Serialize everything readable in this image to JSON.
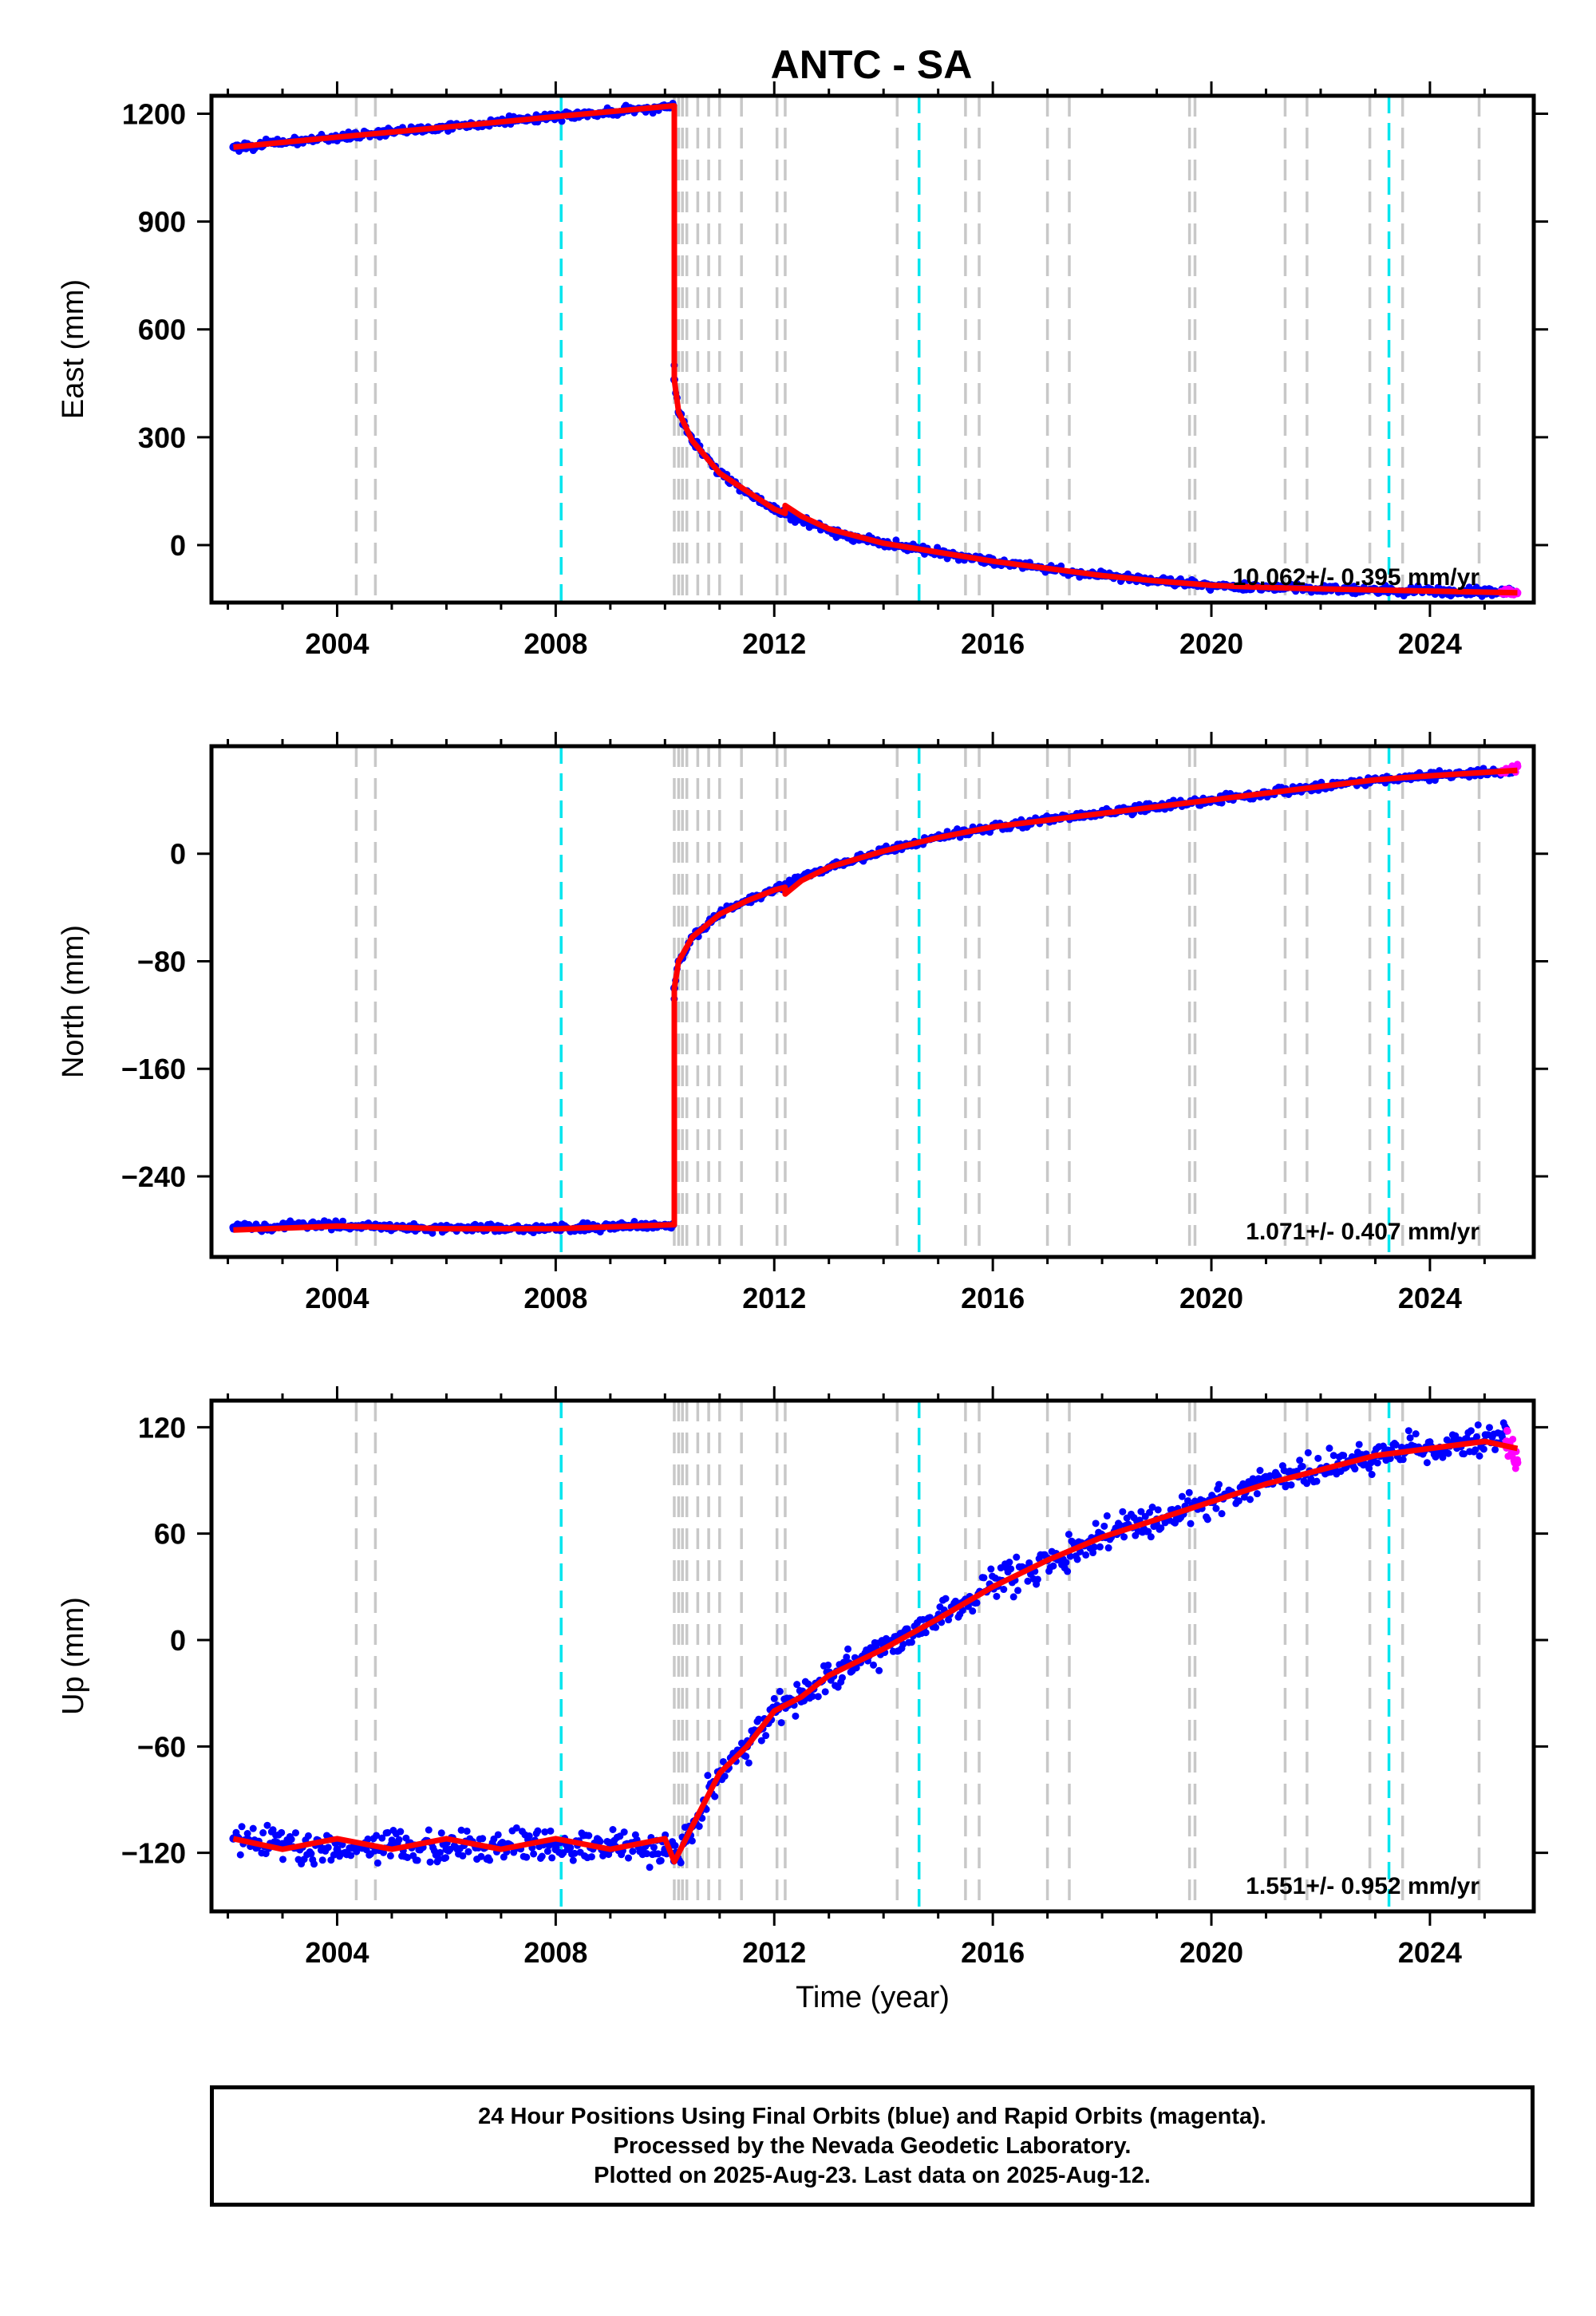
{
  "title": "ANTC - SA",
  "footer": {
    "line1": "24 Hour Positions Using Final Orbits (blue) and Rapid Orbits (magenta).",
    "line2": "Processed by the Nevada Geodetic Laboratory.",
    "line3": "Plotted on 2025-Aug-23. Last data on 2025-Aug-12."
  },
  "colors": {
    "final_orbits": "#0000ff",
    "rapid_orbits": "#ff00ff",
    "model": "#ff0000",
    "equipment_change": "#c8c8c8",
    "earthquake": "#00e5ee"
  },
  "chart_data": [
    {
      "type": "scatter",
      "panel": "east",
      "title": "ANTC - SA",
      "xlabel": "",
      "ylabel": "East (mm)",
      "xlim": [
        2001.7,
        2025.9
      ],
      "ylim": [
        -160,
        1250
      ],
      "xticks": [
        2004,
        2008,
        2012,
        2016,
        2020,
        2024
      ],
      "yticks": [
        0,
        300,
        600,
        900,
        1200
      ],
      "rate_text": "10.062+/- 0.395 mm/yr",
      "grid": false,
      "series": [
        {
          "name": "Final Orbits",
          "color": "#0000ff",
          "points": [
            [
              2002.1,
              1107
            ],
            [
              2003.0,
              1120
            ],
            [
              2004.0,
              1135
            ],
            [
              2005.0,
              1150
            ],
            [
              2006.0,
              1163
            ],
            [
              2007.0,
              1178
            ],
            [
              2008.0,
              1192
            ],
            [
              2009.0,
              1205
            ],
            [
              2010.0,
              1218
            ],
            [
              2010.15,
              1222
            ],
            [
              2010.17,
              460
            ],
            [
              2010.25,
              370
            ],
            [
              2010.5,
              290
            ],
            [
              2011.0,
              200
            ],
            [
              2011.5,
              150
            ],
            [
              2012.0,
              100
            ],
            [
              2012.3,
              80
            ],
            [
              2012.5,
              70
            ],
            [
              2013.0,
              40
            ],
            [
              2014.0,
              5
            ],
            [
              2015.0,
              -20
            ],
            [
              2016.0,
              -45
            ],
            [
              2017.0,
              -65
            ],
            [
              2018.0,
              -85
            ],
            [
              2019.0,
              -100
            ],
            [
              2020.0,
              -112
            ],
            [
              2021.0,
              -118
            ],
            [
              2022.0,
              -122
            ],
            [
              2023.0,
              -125
            ],
            [
              2024.0,
              -128
            ],
            [
              2025.0,
              -130
            ],
            [
              2025.5,
              -132
            ]
          ]
        },
        {
          "name": "Rapid Orbits",
          "color": "#ff00ff",
          "points": [
            [
              2025.3,
              -130
            ],
            [
              2025.45,
              -131
            ],
            [
              2025.6,
              -133
            ]
          ]
        },
        {
          "name": "Model",
          "color": "#ff0000",
          "points": [
            [
              2002.1,
              1107
            ],
            [
              2004.0,
              1135
            ],
            [
              2006.0,
              1163
            ],
            [
              2008.0,
              1192
            ],
            [
              2010.15,
              1222
            ],
            [
              2010.17,
              1222
            ],
            [
              2010.17,
              460
            ],
            [
              2010.25,
              370
            ],
            [
              2010.5,
              290
            ],
            [
              2011.0,
              200
            ],
            [
              2011.5,
              150
            ],
            [
              2012.0,
              100
            ],
            [
              2012.2,
              88
            ],
            [
              2012.2,
              110
            ],
            [
              2012.5,
              80
            ],
            [
              2013.0,
              45
            ],
            [
              2014.0,
              5
            ],
            [
              2015.0,
              -20
            ],
            [
              2016.0,
              -45
            ],
            [
              2017.0,
              -65
            ],
            [
              2018.0,
              -85
            ],
            [
              2019.0,
              -100
            ],
            [
              2020.0,
              -112
            ],
            [
              2021.0,
              -118
            ],
            [
              2022.0,
              -122
            ],
            [
              2023.0,
              -125
            ],
            [
              2024.0,
              -128
            ],
            [
              2025.6,
              -133
            ]
          ]
        }
      ]
    },
    {
      "type": "scatter",
      "panel": "north",
      "xlabel": "",
      "ylabel": "North (mm)",
      "xlim": [
        2001.7,
        2025.9
      ],
      "ylim": [
        -300,
        80
      ],
      "xticks": [
        2004,
        2008,
        2012,
        2016,
        2020,
        2024
      ],
      "yticks": [
        -240,
        -160,
        -80,
        0
      ],
      "rate_text": "1.071+/- 0.407 mm/yr",
      "grid": false,
      "series": [
        {
          "name": "Final Orbits",
          "color": "#0000ff",
          "points": [
            [
              2002.1,
              -278
            ],
            [
              2003.0,
              -277
            ],
            [
              2004.0,
              -276
            ],
            [
              2005.0,
              -278
            ],
            [
              2006.0,
              -279
            ],
            [
              2007.0,
              -278
            ],
            [
              2008.0,
              -279
            ],
            [
              2009.0,
              -277
            ],
            [
              2010.0,
              -276
            ],
            [
              2010.15,
              -276
            ],
            [
              2010.17,
              -100
            ],
            [
              2010.25,
              -80
            ],
            [
              2010.5,
              -62
            ],
            [
              2011.0,
              -45
            ],
            [
              2011.5,
              -35
            ],
            [
              2012.0,
              -27
            ],
            [
              2013.0,
              -10
            ],
            [
              2014.0,
              2
            ],
            [
              2015.0,
              12
            ],
            [
              2016.0,
              20
            ],
            [
              2017.0,
              25
            ],
            [
              2018.0,
              30
            ],
            [
              2019.0,
              35
            ],
            [
              2020.0,
              40
            ],
            [
              2021.0,
              45
            ],
            [
              2022.0,
              50
            ],
            [
              2023.0,
              55
            ],
            [
              2024.0,
              58
            ],
            [
              2025.0,
              60
            ],
            [
              2025.5,
              62
            ]
          ]
        },
        {
          "name": "Rapid Orbits",
          "color": "#ff00ff",
          "points": [
            [
              2025.3,
              61
            ],
            [
              2025.45,
              63
            ],
            [
              2025.6,
              65
            ]
          ]
        },
        {
          "name": "Model",
          "color": "#ff0000",
          "points": [
            [
              2002.1,
              -280
            ],
            [
              2004.0,
              -277
            ],
            [
              2006.0,
              -279
            ],
            [
              2008.0,
              -279
            ],
            [
              2010.15,
              -276
            ],
            [
              2010.17,
              -276
            ],
            [
              2010.17,
              -100
            ],
            [
              2010.25,
              -80
            ],
            [
              2010.5,
              -62
            ],
            [
              2011.0,
              -45
            ],
            [
              2011.5,
              -35
            ],
            [
              2012.0,
              -27
            ],
            [
              2012.2,
              -25
            ],
            [
              2012.2,
              -30
            ],
            [
              2012.5,
              -20
            ],
            [
              2013.0,
              -10
            ],
            [
              2014.0,
              2
            ],
            [
              2015.0,
              12
            ],
            [
              2016.0,
              20
            ],
            [
              2017.0,
              25
            ],
            [
              2018.0,
              30
            ],
            [
              2019.0,
              35
            ],
            [
              2020.0,
              40
            ],
            [
              2021.0,
              45
            ],
            [
              2022.0,
              50
            ],
            [
              2023.0,
              55
            ],
            [
              2024.0,
              58
            ],
            [
              2025.6,
              62
            ]
          ]
        }
      ]
    },
    {
      "type": "scatter",
      "panel": "up",
      "xlabel": "Time (year)",
      "ylabel": "Up (mm)",
      "xlim": [
        2001.7,
        2025.9
      ],
      "ylim": [
        -153,
        135
      ],
      "xticks": [
        2004,
        2008,
        2012,
        2016,
        2020,
        2024
      ],
      "yticks": [
        -120,
        -60,
        0,
        60,
        120
      ],
      "rate_text": "1.551+/- 0.952 mm/yr",
      "grid": false,
      "series": [
        {
          "name": "Final Orbits",
          "color": "#0000ff",
          "points": [
            [
              2002.1,
              -112
            ],
            [
              2003.0,
              -115
            ],
            [
              2004.0,
              -118
            ],
            [
              2005.0,
              -115
            ],
            [
              2006.0,
              -118
            ],
            [
              2007.0,
              -115
            ],
            [
              2008.0,
              -118
            ],
            [
              2009.0,
              -115
            ],
            [
              2010.0,
              -118
            ],
            [
              2010.2,
              -120
            ],
            [
              2010.5,
              -105
            ],
            [
              2011.0,
              -75
            ],
            [
              2011.5,
              -60
            ],
            [
              2012.0,
              -40
            ],
            [
              2012.5,
              -32
            ],
            [
              2013.0,
              -20
            ],
            [
              2014.0,
              -5
            ],
            [
              2015.0,
              12
            ],
            [
              2016.0,
              30
            ],
            [
              2017.0,
              45
            ],
            [
              2018.0,
              58
            ],
            [
              2019.0,
              68
            ],
            [
              2020.0,
              78
            ],
            [
              2021.0,
              88
            ],
            [
              2022.0,
              96
            ],
            [
              2023.0,
              104
            ],
            [
              2024.0,
              108
            ],
            [
              2025.0,
              112
            ],
            [
              2025.4,
              118
            ]
          ]
        },
        {
          "name": "Rapid Orbits",
          "color": "#ff00ff",
          "points": [
            [
              2025.4,
              112
            ],
            [
              2025.5,
              105
            ],
            [
              2025.6,
              100
            ]
          ]
        },
        {
          "name": "Model",
          "color": "#ff0000",
          "points": [
            [
              2002.1,
              -112
            ],
            [
              2003.0,
              -118
            ],
            [
              2004.0,
              -112
            ],
            [
              2005.0,
              -118
            ],
            [
              2006.0,
              -112
            ],
            [
              2007.0,
              -118
            ],
            [
              2008.0,
              -112
            ],
            [
              2009.0,
              -118
            ],
            [
              2010.0,
              -112
            ],
            [
              2010.17,
              -125
            ],
            [
              2010.5,
              -105
            ],
            [
              2011.0,
              -75
            ],
            [
              2011.5,
              -60
            ],
            [
              2012.0,
              -40
            ],
            [
              2012.5,
              -32
            ],
            [
              2013.0,
              -20
            ],
            [
              2014.0,
              -5
            ],
            [
              2015.0,
              12
            ],
            [
              2016.0,
              30
            ],
            [
              2017.0,
              45
            ],
            [
              2018.0,
              58
            ],
            [
              2019.0,
              68
            ],
            [
              2020.0,
              78
            ],
            [
              2021.0,
              88
            ],
            [
              2022.0,
              96
            ],
            [
              2023.0,
              104
            ],
            [
              2024.0,
              108
            ],
            [
              2025.0,
              112
            ],
            [
              2025.6,
              108
            ]
          ]
        }
      ]
    }
  ],
  "events": {
    "equipment_change": [
      2004.35,
      2004.7,
      2010.17,
      2010.25,
      2010.32,
      2010.4,
      2010.6,
      2010.8,
      2011.0,
      2011.4,
      2012.05,
      2012.2,
      2014.25,
      2015.5,
      2015.75,
      2017.0,
      2017.4,
      2019.6,
      2019.7,
      2021.35,
      2021.75,
      2022.9,
      2023.5,
      2024.9
    ],
    "earthquake": [
      2008.1,
      2014.65,
      2023.25
    ]
  }
}
